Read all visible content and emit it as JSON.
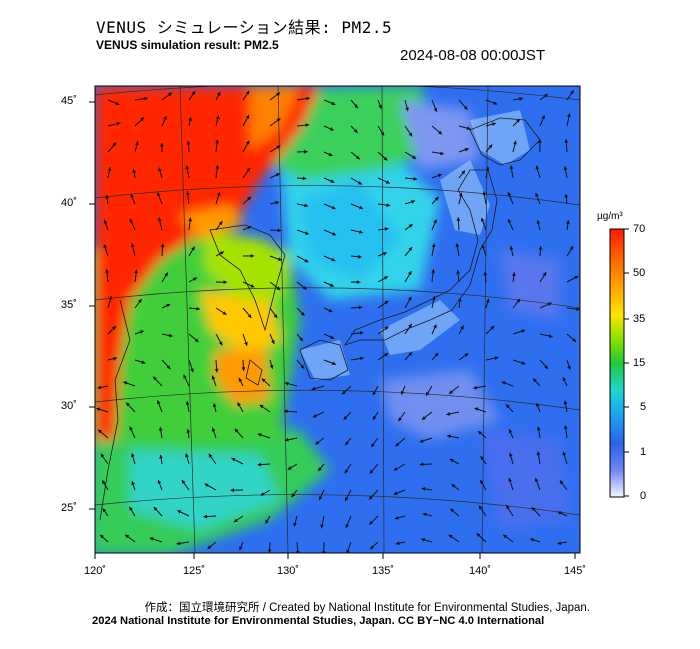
{
  "header": {
    "title_jp": "VENUS シミュレーション結果: PM2.5",
    "title_en": "VENUS simulation result: PM2.5",
    "timestamp": "2024-08-08 00:00JST"
  },
  "map": {
    "lon_range": [
      120,
      145
    ],
    "lat_range": [
      23,
      46
    ],
    "lon_ticks": [
      "120˚",
      "125˚",
      "130˚",
      "135˚",
      "140˚",
      "145˚"
    ],
    "lat_ticks": [
      "45˚",
      "40˚",
      "35˚",
      "30˚",
      "25˚"
    ],
    "field": "PM2.5 concentration",
    "overlay": "wind vectors",
    "colors": {
      "high": "#ff2a00",
      "orange": "#ff8c00",
      "yellow": "#ffd000",
      "green": "#3ccd3c",
      "cyan": "#30d0f0",
      "blue": "#2f6ef0",
      "pale": "#e8ecff"
    }
  },
  "colorbar": {
    "unit": "µg/m³",
    "ticks": [
      "70",
      "50",
      "35",
      "15",
      "5",
      "1",
      "0"
    ]
  },
  "footer": {
    "credit": "作成：国立環境研究所 / Created by National Institute for Environmental Studies, Japan.",
    "license": "2024 National Institute for Environmental Studies, Japan. CC BY−NC 4.0 International"
  }
}
